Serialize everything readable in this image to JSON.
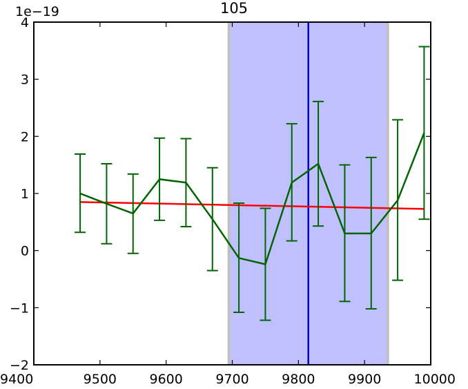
{
  "chart_data": {
    "type": "line",
    "title": "105",
    "y_offset_label": "1e−19",
    "xlim": [
      9400,
      10000
    ],
    "ylim": [
      -2,
      4
    ],
    "x_ticks": [
      9400,
      9500,
      9600,
      9700,
      9800,
      9900,
      10000
    ],
    "x_tick_labels": [
      "9400",
      "9500",
      "9600",
      "9700",
      "9800",
      "9900",
      "10000"
    ],
    "y_ticks": [
      -2,
      -1,
      0,
      1,
      2,
      3,
      4
    ],
    "y_tick_labels": [
      "−2",
      "−1",
      "0",
      "1",
      "2",
      "3",
      "4"
    ],
    "shaded_region": {
      "x_start": 9695,
      "x_end": 9935,
      "color": "#c0c0ff",
      "edge_color": "#bfbfbf"
    },
    "vertical_line": {
      "x": 9815,
      "color": "#0000cc"
    },
    "series": [
      {
        "color": "#006400",
        "x": [
          9470,
          9510,
          9550,
          9590,
          9630,
          9670,
          9710,
          9750,
          9790,
          9830,
          9870,
          9910,
          9950,
          9990
        ],
        "y": [
          1.0,
          0.82,
          0.65,
          1.25,
          1.19,
          0.55,
          -0.13,
          -0.24,
          1.19,
          1.52,
          0.3,
          0.3,
          0.88,
          2.06
        ],
        "err_low": [
          0.32,
          0.12,
          -0.05,
          0.53,
          0.42,
          -0.35,
          -1.08,
          -1.22,
          0.17,
          0.43,
          -0.89,
          -1.02,
          -0.52,
          0.55
        ],
        "err_high": [
          1.69,
          1.52,
          1.34,
          1.97,
          1.96,
          1.45,
          0.83,
          0.74,
          2.22,
          2.61,
          1.5,
          1.63,
          2.29,
          3.57
        ]
      },
      {
        "color": "#ff0000",
        "x": [
          9470,
          9990
        ],
        "y": [
          0.85,
          0.73
        ]
      }
    ]
  }
}
